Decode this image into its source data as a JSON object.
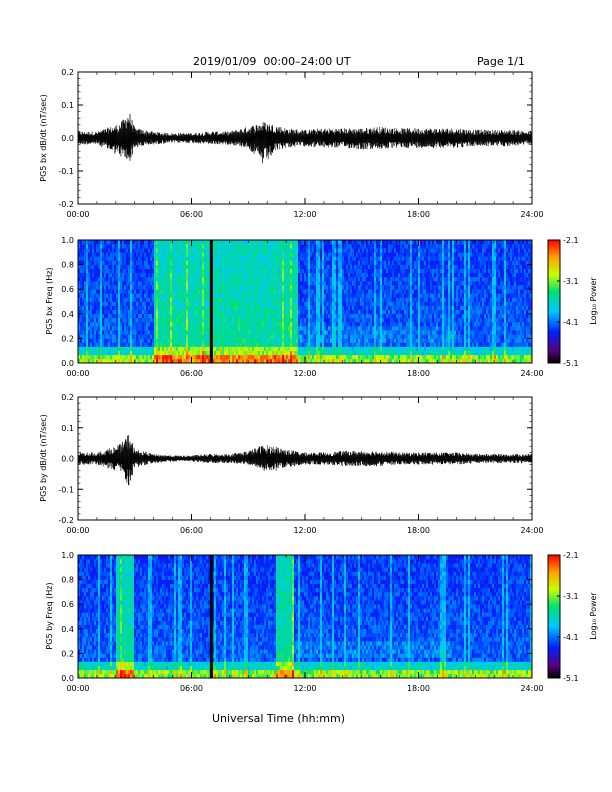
{
  "header": {
    "title": "2019/01/09  00:00–24:00 UT",
    "page": "Page 1/1"
  },
  "xlabel": "Universal Time (hh:mm)",
  "chart_data": [
    {
      "type": "line",
      "ylabel": "PG5 bx dB/dt (nT/sec)",
      "xlim": [
        0,
        24
      ],
      "ylim": [
        -0.2,
        0.2
      ],
      "x_ticks": [
        "00:00",
        "06:00",
        "12:00",
        "18:00",
        "24:00"
      ],
      "y_ticks": [
        "-0.2",
        "-0.1",
        "0.0",
        "0.1",
        "0.2"
      ],
      "series": [
        {
          "x": [
            0,
            1,
            2,
            2.3,
            2.7,
            3,
            4,
            5,
            6,
            7,
            8,
            9,
            9.8,
            10.5,
            11,
            12,
            13,
            14,
            15,
            16,
            17,
            18,
            19,
            20,
            21,
            22,
            23,
            24
          ],
          "y_min": [
            -0.02,
            -0.02,
            -0.05,
            -0.06,
            -0.08,
            -0.03,
            -0.02,
            -0.015,
            -0.015,
            -0.02,
            -0.02,
            -0.03,
            -0.085,
            -0.04,
            -0.03,
            -0.025,
            -0.03,
            -0.03,
            -0.035,
            -0.035,
            -0.03,
            -0.03,
            -0.03,
            -0.03,
            -0.025,
            -0.025,
            -0.025,
            -0.02
          ],
          "y_max": [
            0.02,
            0.02,
            0.04,
            0.05,
            0.085,
            0.03,
            0.02,
            0.015,
            0.015,
            0.02,
            0.02,
            0.035,
            0.05,
            0.04,
            0.03,
            0.025,
            0.03,
            0.03,
            0.03,
            0.035,
            0.03,
            0.03,
            0.03,
            0.03,
            0.025,
            0.025,
            0.025,
            0.02
          ]
        }
      ]
    },
    {
      "type": "heatmap",
      "ylabel": "PG5 bx Freq (Hz)",
      "xlim": [
        0,
        24
      ],
      "ylim": [
        0,
        1
      ],
      "x_ticks": [
        "00:00",
        "06:00",
        "12:00",
        "18:00",
        "24:00"
      ],
      "y_ticks": [
        "0.0",
        "0.2",
        "0.4",
        "0.6",
        "0.8",
        "1.0"
      ],
      "colorbar": {
        "label": "Log₁₀ Power",
        "ticks": [
          "-2.1",
          "-3.1",
          "-4.1",
          "-5.1"
        ],
        "range": [
          -5.1,
          -2.1
        ]
      },
      "data_gap_hours": 7.05,
      "elevated_intervals_hours": [
        [
          4.0,
          11.6
        ]
      ]
    },
    {
      "type": "line",
      "ylabel": "PG5 by dB/dt (nT/sec)",
      "xlim": [
        0,
        24
      ],
      "ylim": [
        -0.2,
        0.2
      ],
      "x_ticks": [
        "00:00",
        "06:00",
        "12:00",
        "18:00",
        "24:00"
      ],
      "y_ticks": [
        "-0.2",
        "-0.1",
        "0.0",
        "0.1",
        "0.2"
      ],
      "series": [
        {
          "x": [
            0,
            1,
            2,
            2.3,
            2.7,
            3,
            4,
            5,
            6,
            7,
            8,
            9,
            9.8,
            10.5,
            11,
            12,
            13,
            14,
            15,
            16,
            17,
            18,
            19,
            20,
            21,
            22,
            23,
            24
          ],
          "y_min": [
            -0.02,
            -0.02,
            -0.04,
            -0.05,
            -0.09,
            -0.03,
            -0.015,
            -0.01,
            -0.01,
            -0.015,
            -0.015,
            -0.02,
            -0.04,
            -0.04,
            -0.03,
            -0.02,
            -0.02,
            -0.025,
            -0.025,
            -0.025,
            -0.02,
            -0.02,
            -0.02,
            -0.02,
            -0.015,
            -0.015,
            -0.015,
            -0.015
          ],
          "y_max": [
            0.02,
            0.02,
            0.04,
            0.05,
            0.085,
            0.03,
            0.015,
            0.01,
            0.01,
            0.015,
            0.015,
            0.025,
            0.045,
            0.04,
            0.03,
            0.02,
            0.02,
            0.025,
            0.025,
            0.025,
            0.02,
            0.02,
            0.02,
            0.02,
            0.015,
            0.015,
            0.015,
            0.015
          ]
        }
      ]
    },
    {
      "type": "heatmap",
      "ylabel": "PG5 by Freq (Hz)",
      "xlim": [
        0,
        24
      ],
      "ylim": [
        0,
        1
      ],
      "x_ticks": [
        "00:00",
        "06:00",
        "12:00",
        "18:00",
        "24:00"
      ],
      "y_ticks": [
        "0.0",
        "0.2",
        "0.4",
        "0.6",
        "0.8",
        "1.0"
      ],
      "colorbar": {
        "label": "Log₁₀ Power",
        "ticks": [
          "-2.1",
          "-3.1",
          "-4.1",
          "-5.1"
        ],
        "range": [
          -5.1,
          -2.1
        ]
      },
      "data_gap_hours": 7.05,
      "elevated_intervals_hours": [
        [
          2.0,
          3.0
        ],
        [
          10.5,
          11.4
        ]
      ]
    }
  ]
}
